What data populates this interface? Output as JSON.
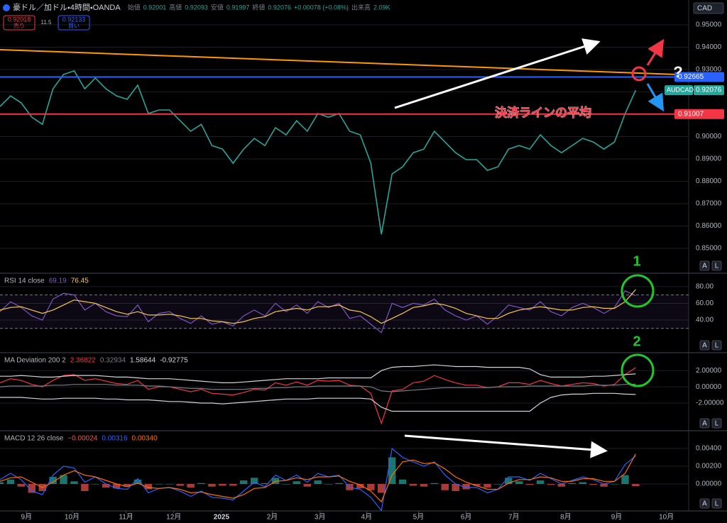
{
  "header": {
    "symbol": "豪ドル／加ドル・4時間・OANDA",
    "ohlc": [
      {
        "label": "始値",
        "value": "0.92001"
      },
      {
        "label": "高値",
        "value": "0.92093"
      },
      {
        "label": "安値",
        "value": "0.91997"
      },
      {
        "label": "終値",
        "value": "0.92076"
      }
    ],
    "change": "+0.00078 (+0.08%)",
    "volume_label": "出来高",
    "volume": "2.09K",
    "sell_price": "0.92018",
    "sell_label": "売り",
    "spread": "11.5",
    "buy_price": "0.92133",
    "buy_label": "買い",
    "currency": "CAD",
    "scale_buttons": [
      "A",
      "L"
    ]
  },
  "annotations": {
    "question": "?",
    "marker_1": "1",
    "marker_2": "2"
  },
  "chart_data": [
    {
      "type": "line",
      "xlim": [
        0,
        65
      ],
      "ylim": [
        0.8389,
        0.9611
      ],
      "yticks": [
        {
          "value": 0.85,
          "label": "0.85000"
        },
        {
          "value": 0.86,
          "label": "0.86000"
        },
        {
          "value": 0.87,
          "label": "0.87000"
        },
        {
          "value": 0.88,
          "label": "0.88000"
        },
        {
          "value": 0.89,
          "label": "0.89000"
        },
        {
          "value": 0.9,
          "label": "0.90000"
        },
        {
          "value": 0.91,
          "label": "0.91000"
        },
        {
          "value": 0.92,
          "label": "0.92000"
        },
        {
          "value": 0.93,
          "label": "0.93000"
        },
        {
          "value": 0.94,
          "label": "0.94000"
        },
        {
          "value": 0.95,
          "label": "0.95000"
        }
      ],
      "x": [
        0,
        1,
        2,
        3,
        4,
        5,
        6,
        7,
        8,
        9,
        10,
        11,
        12,
        13,
        14,
        15,
        16,
        17,
        18,
        19,
        20,
        21,
        22,
        23,
        24,
        25,
        26,
        27,
        28,
        29,
        30,
        31,
        32,
        33,
        34,
        35,
        36,
        37,
        38,
        39,
        40,
        41,
        42,
        43,
        44,
        45,
        46,
        47,
        48,
        49,
        50,
        51,
        52,
        53,
        54,
        55,
        56,
        57,
        58,
        59,
        60
      ],
      "series": [
        {
          "name": "AUDCAD",
          "color": "#26a69a",
          "values": [
            0.9135,
            0.9182,
            0.9151,
            0.9087,
            0.9055,
            0.9214,
            0.9278,
            0.9294,
            0.9214,
            0.9262,
            0.9214,
            0.9182,
            0.9167,
            0.923,
            0.9103,
            0.9119,
            0.9119,
            0.9071,
            0.9024,
            0.9055,
            0.896,
            0.8944,
            0.8881,
            0.8944,
            0.8992,
            0.896,
            0.904,
            0.9008,
            0.9071,
            0.9024,
            0.9103,
            0.9087,
            0.9103,
            0.9024,
            0.9008,
            0.8881,
            0.8563,
            0.8833,
            0.8865,
            0.8928,
            0.8944,
            0.9024,
            0.8976,
            0.8928,
            0.8897,
            0.8897,
            0.8849,
            0.8865,
            0.8944,
            0.896,
            0.8944,
            0.9008,
            0.896,
            0.8928,
            0.896,
            0.8992,
            0.8976,
            0.8944,
            0.8976,
            0.9103,
            0.92076
          ]
        }
      ],
      "levels": [
        {
          "value": 0.92665,
          "color": "#2962ff"
        },
        {
          "value": 0.91007,
          "color": "#f23645",
          "annotation": "決済ラインの平均"
        }
      ],
      "trendline": {
        "color": "#ff9800",
        "x": [
          0,
          63.7
        ],
        "values": [
          0.9389,
          0.9278
        ]
      }
    },
    {
      "type": "line",
      "title": "RSI 14 close",
      "xlim": [
        0,
        65
      ],
      "ylim": [
        1,
        96
      ],
      "yticks": [
        {
          "value": 80,
          "label": "80.00"
        },
        {
          "value": 60,
          "label": "60.00"
        },
        {
          "value": 40,
          "label": "40.00"
        }
      ],
      "bands": [
        70,
        30
      ],
      "band_color": "#7e57c2",
      "legend_values": [
        "69.19",
        "76.45"
      ],
      "series": [
        {
          "color": "#7e57c2",
          "values": [
            50,
            62,
            55,
            45,
            40,
            65,
            72,
            70,
            52,
            60,
            50,
            45,
            44,
            58,
            38,
            48,
            50,
            42,
            36,
            45,
            35,
            38,
            33,
            45,
            52,
            45,
            60,
            50,
            58,
            48,
            62,
            55,
            60,
            42,
            45,
            35,
            25,
            60,
            55,
            60,
            58,
            65,
            52,
            45,
            40,
            45,
            35,
            45,
            58,
            55,
            52,
            62,
            50,
            45,
            55,
            60,
            55,
            48,
            55,
            75,
            69.19
          ]
        },
        {
          "color": "#f7c948",
          "values": [
            52,
            55,
            56,
            52,
            48,
            52,
            58,
            64,
            62,
            60,
            55,
            50,
            47,
            50,
            46,
            46,
            47,
            45,
            42,
            42,
            39,
            38,
            36,
            38,
            42,
            44,
            50,
            52,
            54,
            52,
            56,
            56,
            58,
            52,
            50,
            44,
            36,
            42,
            48,
            55,
            57,
            60,
            58,
            54,
            48,
            45,
            42,
            42,
            48,
            52,
            54,
            56,
            54,
            52,
            52,
            55,
            56,
            54,
            54,
            62,
            76.45
          ]
        }
      ]
    },
    {
      "type": "line",
      "title": "MA Deviation 200 2",
      "xlim": [
        0,
        65
      ],
      "ylim": [
        -5.4,
        4.2
      ],
      "yticks": [
        {
          "value": 2,
          "label": "2.00000"
        },
        {
          "value": 0,
          "label": "0.00000"
        },
        {
          "value": -2,
          "label": "-2.00000"
        }
      ],
      "legend_values": [
        "2.36822",
        "0.32934",
        "1.58644",
        "-0.92775"
      ],
      "series": [
        {
          "color": "#f23645",
          "values": [
            0.5,
            1,
            0.8,
            0.3,
            0,
            0.8,
            1.4,
            1.5,
            0.8,
            1,
            0.7,
            0.4,
            0.3,
            0.8,
            -0.3,
            0,
            0,
            -0.3,
            -0.6,
            -0.3,
            -0.8,
            -0.9,
            -1,
            -0.7,
            -0.3,
            -0.4,
            0.5,
            0.2,
            0.6,
            0.2,
            0.8,
            0.7,
            0.8,
            0.2,
            0.1,
            -0.8,
            -4.5,
            -0.5,
            -0.3,
            0.5,
            0.7,
            1.4,
            0.9,
            0.5,
            0.2,
            0.2,
            -0.1,
            0,
            0.5,
            0.5,
            0.3,
            0.8,
            0.4,
            0.1,
            0.3,
            0.5,
            0.4,
            0.1,
            0.3,
            1.5,
            2.36822
          ]
        },
        {
          "color": "#787b86",
          "values": [
            0,
            0.1,
            0.1,
            0.1,
            0.1,
            0.2,
            0.2,
            0.3,
            0.3,
            0.3,
            0.3,
            0.2,
            0.2,
            0.2,
            0.1,
            0.1,
            0,
            -0.1,
            -0.2,
            -0.2,
            -0.3,
            -0.3,
            -0.3,
            -0.3,
            -0.2,
            -0.2,
            -0.1,
            -0.1,
            0,
            0,
            0.1,
            0.1,
            0.1,
            0.1,
            0.1,
            0,
            -0.5,
            -0.6,
            -0.5,
            -0.4,
            -0.3,
            -0.2,
            -0.1,
            -0.1,
            -0.1,
            -0.1,
            -0.1,
            0,
            0,
            0,
            0.1,
            0.1,
            0.1,
            0.1,
            0.1,
            0.1,
            0.2,
            0.2,
            0.2,
            0.3,
            0.32934
          ]
        },
        {
          "color": "#d1d4dc",
          "values": [
            1.3,
            1.3,
            1.4,
            1.3,
            1.2,
            1.2,
            1.3,
            1.4,
            1.4,
            1.4,
            1.3,
            1.2,
            1.2,
            1.1,
            1,
            1,
            1,
            0.9,
            0.8,
            0.7,
            0.6,
            0.5,
            0.5,
            0.6,
            0.7,
            0.8,
            0.9,
            1,
            1,
            1,
            1,
            1.1,
            1.1,
            1.1,
            1.1,
            1.1,
            2,
            2.4,
            2.5,
            2.5,
            2.6,
            2.7,
            2.6,
            2.5,
            2.5,
            2.5,
            2.4,
            2.4,
            2.4,
            2.4,
            2.2,
            1.5,
            1.2,
            1.2,
            1.2,
            1.2,
            1.3,
            1.3,
            1.4,
            1.5,
            1.58644
          ]
        },
        {
          "color": "#d1d4dc",
          "values": [
            -1.3,
            -1.3,
            -1.3,
            -1.4,
            -1.5,
            -1.5,
            -1.4,
            -1.4,
            -1.4,
            -1.4,
            -1.5,
            -1.5,
            -1.6,
            -1.6,
            -1.6,
            -1.7,
            -1.8,
            -1.8,
            -1.9,
            -2,
            -2,
            -2.1,
            -2,
            -1.9,
            -1.8,
            -1.7,
            -1.6,
            -1.5,
            -1.5,
            -1.5,
            -1.4,
            -1.4,
            -1.4,
            -1.4,
            -1.4,
            -1.5,
            -2.5,
            -3,
            -3,
            -3,
            -3,
            -3,
            -3,
            -3,
            -3,
            -3,
            -3,
            -3,
            -3,
            -3,
            -3,
            -2,
            -1.3,
            -1,
            -0.9,
            -0.9,
            -0.8,
            -0.8,
            -0.8,
            -0.9,
            -0.92775
          ]
        }
      ]
    },
    {
      "type": "line",
      "title": "MACD 12 26 close",
      "xlim": [
        0,
        65
      ],
      "ylim": [
        -0.00304,
        0.006
      ],
      "yticks": [
        {
          "value": 0.004,
          "label": "0.00400"
        },
        {
          "value": 0.002,
          "label": "0.00200"
        },
        {
          "value": 0,
          "label": "0.00000"
        }
      ],
      "legend_values": [
        "−0.00024",
        "0.00316",
        "0.00340"
      ],
      "series": [
        {
          "style": "histogram",
          "color": "#ef5350",
          "up_color": "#26a69a",
          "values": [
            0.0002,
            0.0005,
            -0.0003,
            -0.001,
            -0.0008,
            0.0008,
            0.001,
            0.0003,
            -0.0008,
            0,
            -0.0004,
            -0.0005,
            -0.0003,
            0.0005,
            -0.0006,
            0,
            0,
            -0.0002,
            -0.0004,
            0.0001,
            -0.0003,
            -0.0002,
            -0.0002,
            0.0004,
            0.0007,
            0.0001,
            0.0007,
            0,
            0.0003,
            -0.0003,
            0.0004,
            0,
            0.0001,
            -0.0007,
            -0.0005,
            -0.0007,
            -0.001,
            0.003,
            0.0005,
            -0.0002,
            -0.0003,
            0.0001,
            -0.0007,
            -0.0008,
            -0.0006,
            -0.0002,
            -0.0004,
            0,
            0.0007,
            0.0003,
            -0.0001,
            0.0004,
            -0.0001,
            -0.0003,
            0.0001,
            0.0002,
            -0.0001,
            -0.0003,
            0,
            0.001,
            -0.00024
          ]
        },
        {
          "color": "#2962ff",
          "values": [
            0.0005,
            0.0012,
            0.0005,
            -0.0008,
            -0.0012,
            0.001,
            0.002,
            0.0018,
            0.0002,
            0.0008,
            0,
            -0.0005,
            -0.0006,
            0.0006,
            -0.001,
            -0.0005,
            -0.0004,
            -0.0008,
            -0.0014,
            -0.0008,
            -0.0015,
            -0.0016,
            -0.0018,
            -0.0008,
            0.0002,
            -0.0003,
            0.001,
            0.0004,
            0.001,
            0.0002,
            0.0012,
            0.0008,
            0.001,
            -0.0004,
            -0.0006,
            -0.0015,
            -0.003,
            0.004,
            0.003,
            0.0025,
            0.002,
            0.0025,
            0.001,
            0,
            -0.0004,
            -0.0004,
            -0.001,
            -0.0006,
            0.0008,
            0.0008,
            0.0004,
            0.0012,
            0.0006,
            0,
            0.0004,
            0.0008,
            0.0005,
            0,
            0.0003,
            0.0022,
            0.00316
          ]
        },
        {
          "color": "#ff6d00",
          "values": [
            0.0003,
            0.0007,
            0.0008,
            0.0002,
            -0.0004,
            0.0002,
            0.001,
            0.0015,
            0.001,
            0.0008,
            0.0004,
            0,
            -0.0003,
            0.0001,
            -0.0004,
            -0.0005,
            -0.0004,
            -0.0006,
            -0.001,
            -0.0009,
            -0.0012,
            -0.0014,
            -0.0016,
            -0.0012,
            -0.0005,
            -0.0004,
            0.0003,
            0.0004,
            0.0007,
            0.0005,
            0.0008,
            0.0008,
            0.0009,
            0.0003,
            -0.0001,
            -0.0008,
            -0.002,
            0.001,
            0.0025,
            0.0027,
            0.0023,
            0.0024,
            0.0017,
            0.0008,
            0.0002,
            -0.0002,
            -0.0006,
            -0.0006,
            0.0001,
            0.0005,
            0.0005,
            0.0008,
            0.0007,
            0.0003,
            0.0003,
            0.0006,
            0.0006,
            0.0003,
            0.0003,
            0.0012,
            0.0034
          ]
        }
      ],
      "xticks": [
        {
          "value": 2.5,
          "label": "9月"
        },
        {
          "value": 6.8,
          "label": "10月"
        },
        {
          "value": 11.9,
          "label": "11月"
        },
        {
          "value": 16.4,
          "label": "12月"
        },
        {
          "value": 20.9,
          "label": "2025"
        },
        {
          "value": 25.7,
          "label": "2月"
        },
        {
          "value": 30.2,
          "label": "3月"
        },
        {
          "value": 34.6,
          "label": "4月"
        },
        {
          "value": 39.5,
          "label": "5月"
        },
        {
          "value": 44,
          "label": "6月"
        },
        {
          "value": 48.5,
          "label": "7月"
        },
        {
          "value": 53.4,
          "label": "8月"
        },
        {
          "value": 58.2,
          "label": "9月"
        },
        {
          "value": 62.9,
          "label": "10月"
        }
      ]
    }
  ]
}
